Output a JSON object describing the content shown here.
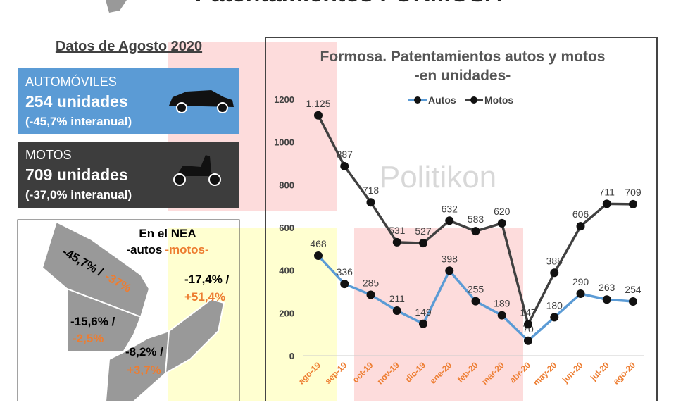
{
  "header": {
    "title": "Patentamientos FORMOSA",
    "subtitle": "Datos de Agosto 2020"
  },
  "autos_box": {
    "label": "AUTOMÓVILES",
    "units": "254 unidades",
    "change": "(-45,7% interanual)"
  },
  "motos_box": {
    "label": "MOTOS",
    "units": "709 unidades",
    "change": "(-37,0% interanual)"
  },
  "map": {
    "title": "En el NEA",
    "legend_autos": "-autos",
    "legend_motos": "-motos-",
    "regions": [
      {
        "autos": "-45,7% / ",
        "motos": "-37%"
      },
      {
        "autos": "-15,6% /",
        "motos": "-2,5%"
      },
      {
        "autos": "-8,2% /",
        "motos": "+3,7%"
      },
      {
        "autos": "-17,4% /",
        "motos": "+51,4%"
      }
    ]
  },
  "watermark": "Politikon",
  "chart_data": {
    "type": "line",
    "title": "Formosa. Patentamientos autos y motos",
    "subtitle": "-en unidades-",
    "categories": [
      "ago-19",
      "sep-19",
      "oct-19",
      "nov-19",
      "dic-19",
      "ene-20",
      "feb-20",
      "mar-20",
      "abr-20",
      "may-20",
      "jun-20",
      "jul-20",
      "ago-20"
    ],
    "series": [
      {
        "name": "Autos",
        "color": "#5b9bd5",
        "values": [
          468,
          336,
          285,
          211,
          149,
          398,
          255,
          189,
          70,
          180,
          290,
          263,
          254
        ]
      },
      {
        "name": "Motos",
        "color": "#404040",
        "values": [
          1125,
          887,
          718,
          531,
          527,
          632,
          583,
          620,
          147,
          388,
          606,
          711,
          709
        ],
        "value_labels": [
          "1.125",
          "887",
          "718",
          "531",
          "527",
          "632",
          "583",
          "620",
          "147",
          "388",
          "606",
          "711",
          "709"
        ]
      }
    ],
    "ylim": [
      0,
      1200
    ],
    "yticks": [
      0,
      200,
      400,
      600,
      800,
      1000,
      1200
    ],
    "grid": false,
    "legend": "top"
  }
}
